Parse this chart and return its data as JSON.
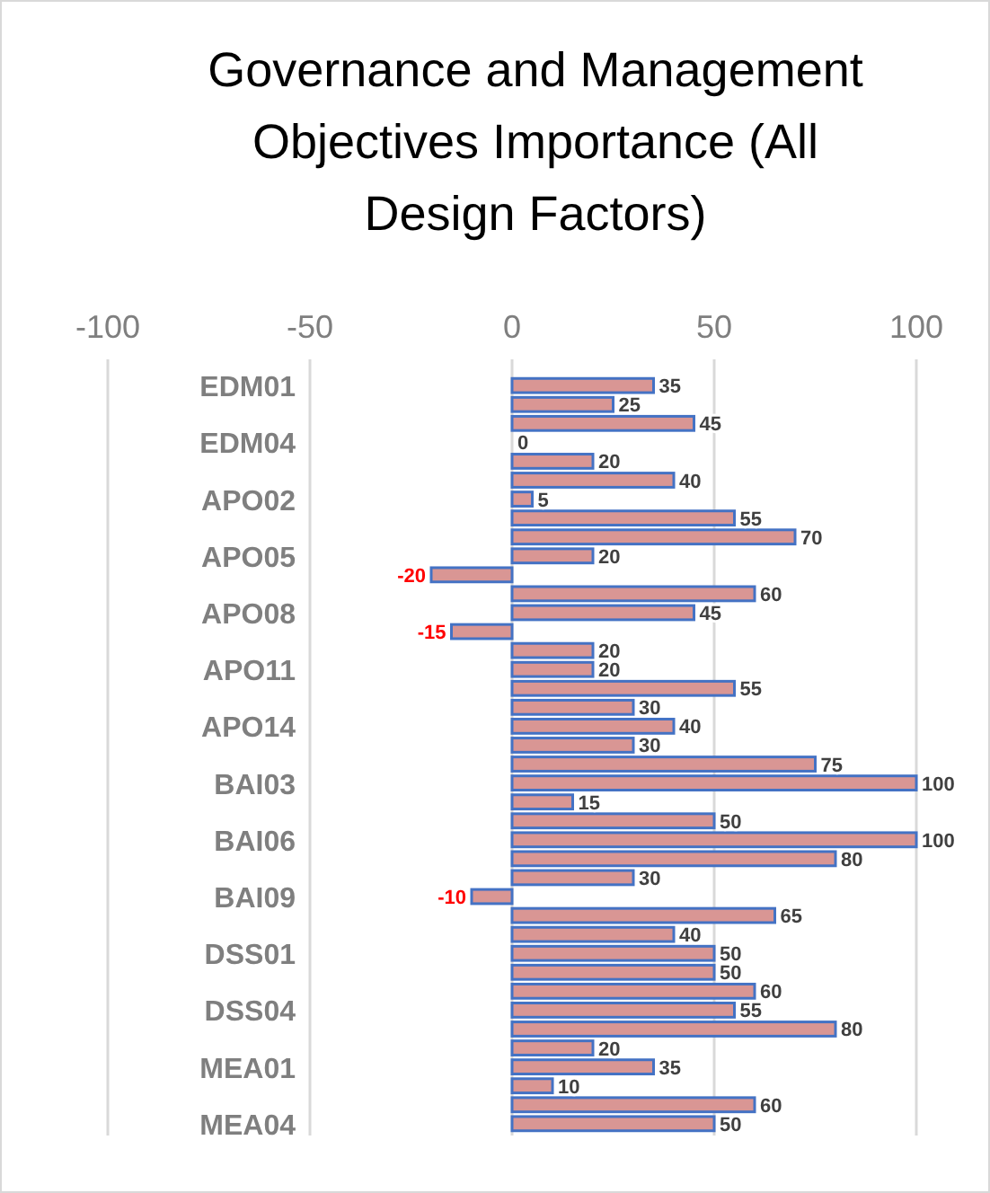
{
  "chart_data": {
    "type": "bar",
    "orientation": "horizontal",
    "title": "Governance and Management Objectives Importance (All Design Factors)",
    "categories": [
      "EDM01",
      null,
      null,
      "EDM04",
      null,
      null,
      "APO02",
      null,
      null,
      "APO05",
      null,
      null,
      "APO08",
      null,
      null,
      "APO11",
      null,
      null,
      "APO14",
      null,
      null,
      "BAI03",
      null,
      null,
      "BAI06",
      null,
      null,
      "BAI09",
      null,
      null,
      "DSS01",
      null,
      null,
      "DSS04",
      null,
      null,
      "MEA01",
      null,
      null,
      "MEA04"
    ],
    "values": [
      35,
      25,
      45,
      0,
      20,
      40,
      5,
      55,
      70,
      20,
      -20,
      60,
      45,
      -15,
      20,
      20,
      55,
      30,
      40,
      30,
      75,
      100,
      15,
      50,
      100,
      80,
      30,
      -10,
      65,
      40,
      50,
      50,
      60,
      55,
      80,
      20,
      35,
      10,
      60,
      50
    ],
    "color": "#d99694",
    "xlim": [
      -100,
      100
    ],
    "xticks": [
      -100,
      -50,
      0,
      50,
      100
    ],
    "grid": "x",
    "data_labels": true
  }
}
